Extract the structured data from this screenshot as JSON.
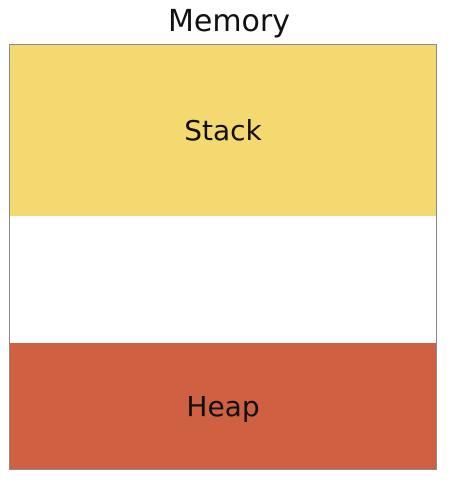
{
  "title": "Memory",
  "regions": [
    {
      "id": "stack",
      "label": "Stack",
      "color": "#f4d870"
    },
    {
      "id": "free",
      "label": "",
      "color": "#ffffff"
    },
    {
      "id": "heap",
      "label": "Heap",
      "color": "#cf6142"
    }
  ]
}
